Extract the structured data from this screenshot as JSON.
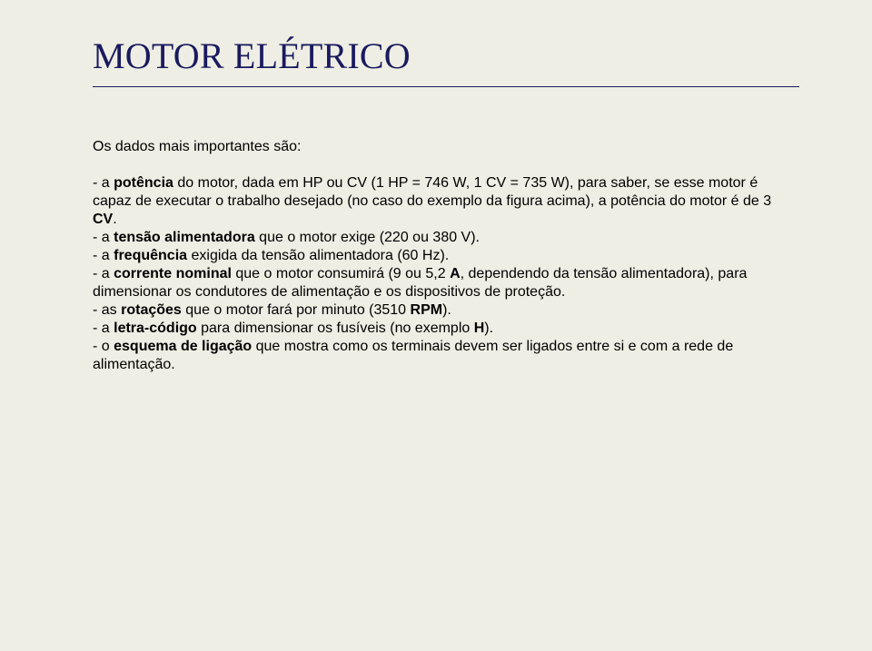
{
  "title": "MOTOR ELÉTRICO",
  "intro": "Os dados mais importantes são:",
  "items": [
    {
      "lead": "- a ",
      "bold1": "potência",
      "mid": " do motor, dada em HP ou CV (1 HP = 746 W, 1 CV = 735 W), para saber, se esse motor é capaz de executar o trabalho desejado (no caso do exemplo da figura acima), a potência do motor é de 3 ",
      "bold2": "CV",
      "tail": "."
    },
    {
      "lead": "- a ",
      "bold1": "tensão alimentadora",
      "mid": " que o motor exige (220 ou 380 V).",
      "bold2": "",
      "tail": ""
    },
    {
      "lead": "- a ",
      "bold1": "frequência",
      "mid": " exigida da tensão alimentadora (60 Hz).",
      "bold2": "",
      "tail": ""
    },
    {
      "lead": "- a ",
      "bold1": "corrente nominal",
      "mid": " que o motor consumirá (9 ou 5,2 ",
      "bold2": "A",
      "tail": ", dependendo da tensão alimentadora), para dimensionar os condutores de alimentação e os dispositivos de proteção."
    },
    {
      "lead": "- as ",
      "bold1": "rotações",
      "mid": " que o motor fará por minuto (3510 ",
      "bold2": "RPM",
      "tail": ")."
    },
    {
      "lead": "- a ",
      "bold1": "letra-código",
      "mid": " para dimensionar os fusíveis (no exemplo ",
      "bold2": "H",
      "tail": ")."
    },
    {
      "lead": "- o ",
      "bold1": "esquema de ligação",
      "mid": " que mostra como os terminais devem ser ligados entre si e com a rede de alimentação.",
      "bold2": "",
      "tail": ""
    }
  ],
  "colors": {
    "background": "#eeeee4",
    "title": "#1a1a60",
    "rule": "#1a1a60",
    "text": "#000000"
  }
}
